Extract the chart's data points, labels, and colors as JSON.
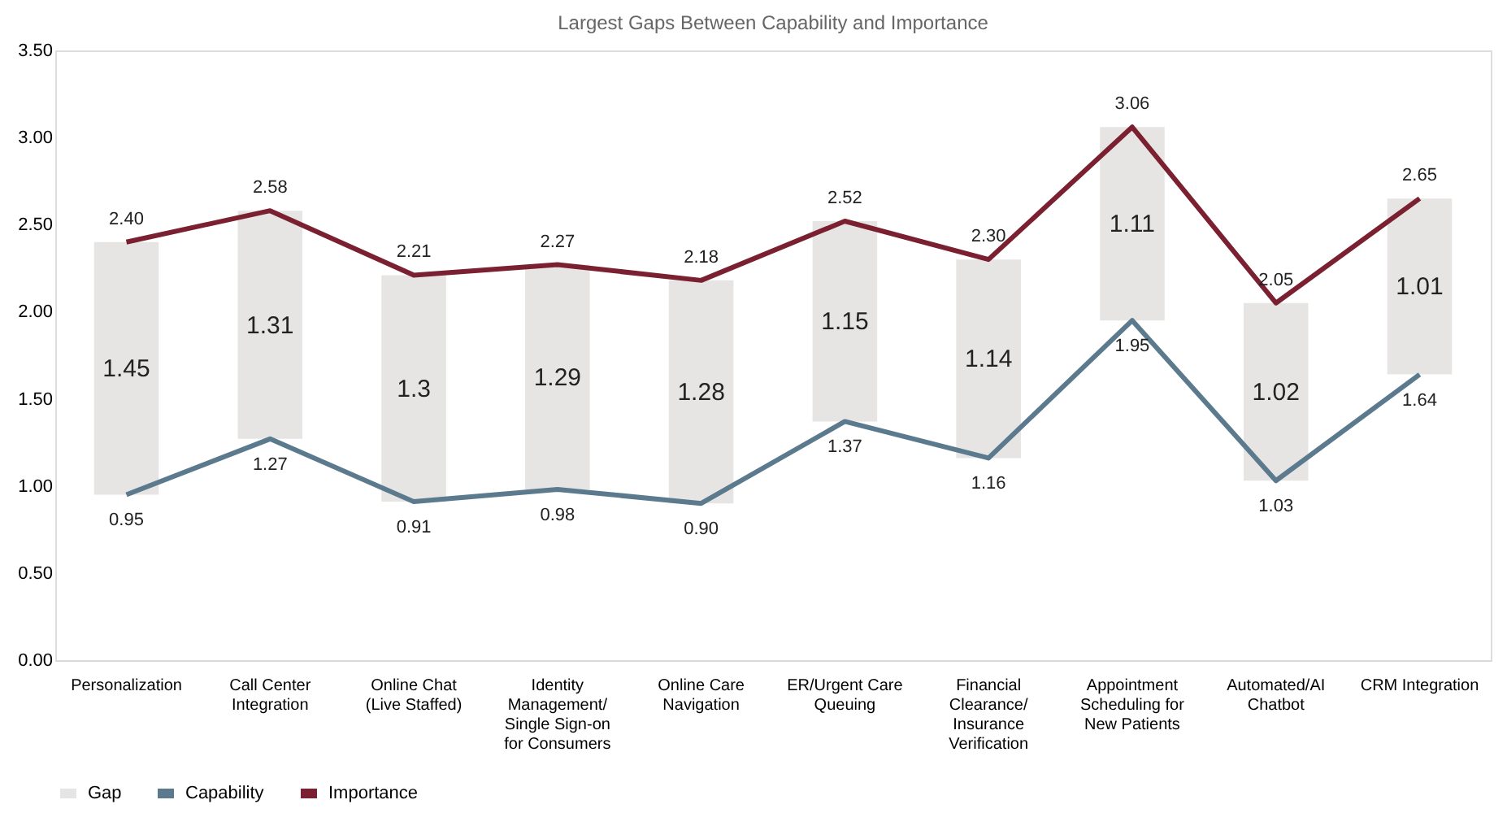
{
  "chart_data": {
    "type": "bar",
    "title": "Largest Gaps Between Capability and Importance",
    "categories": [
      "Personalization",
      "Call Center Integration",
      "Online Chat (Live Staffed)",
      "Identity Management/ Single Sign-on for Consumers",
      "Online Care Navigation",
      "ER/Urgent Care Queuing",
      "Financial Clearance/ Insurance Verification",
      "Appointment Scheduling for New Patients",
      "Automated/AI Chatbot",
      "CRM Integration"
    ],
    "series": [
      {
        "name": "Gap",
        "color": "#e7e5e4",
        "base": [
          0.95,
          1.27,
          0.91,
          0.98,
          0.9,
          1.37,
          1.16,
          1.95,
          1.03,
          1.64
        ],
        "values": [
          1.45,
          1.31,
          1.3,
          1.29,
          1.28,
          1.15,
          1.14,
          1.11,
          1.02,
          1.01
        ],
        "value_labels": [
          "1.45",
          "1.31",
          "1.3",
          "1.29",
          "1.28",
          "1.15",
          "1.14",
          "1.11",
          "1.02",
          "1.01"
        ]
      },
      {
        "name": "Capability",
        "type": "line",
        "color": "#5b7a8e",
        "values": [
          0.95,
          1.27,
          0.91,
          0.98,
          0.9,
          1.37,
          1.16,
          1.95,
          1.03,
          1.64
        ],
        "value_labels": [
          "0.95",
          "1.27",
          "0.91",
          "0.98",
          "0.90",
          "1.37",
          "1.16",
          "1.95",
          "1.03",
          "1.64"
        ]
      },
      {
        "name": "Importance",
        "type": "line",
        "color": "#7a2030",
        "values": [
          2.4,
          2.58,
          2.21,
          2.27,
          2.18,
          2.52,
          2.3,
          3.06,
          2.05,
          2.65
        ],
        "value_labels": [
          "2.40",
          "2.58",
          "2.21",
          "2.27",
          "2.18",
          "2.52",
          "2.30",
          "3.06",
          "2.05",
          "2.65"
        ]
      }
    ],
    "ylim": [
      0,
      3.5
    ],
    "yticks": [
      {
        "value": 0,
        "label": "0.00"
      },
      {
        "value": 0.5,
        "label": "0.50"
      },
      {
        "value": 1,
        "label": "1.00"
      },
      {
        "value": 1.5,
        "label": "1.50"
      },
      {
        "value": 2,
        "label": "2.00"
      },
      {
        "value": 2.5,
        "label": "2.50"
      },
      {
        "value": 3,
        "label": "3.00"
      },
      {
        "value": 3.5,
        "label": "3.50"
      }
    ],
    "grid": false,
    "legend": "bottom",
    "line_style": "solid",
    "marker": "none"
  }
}
